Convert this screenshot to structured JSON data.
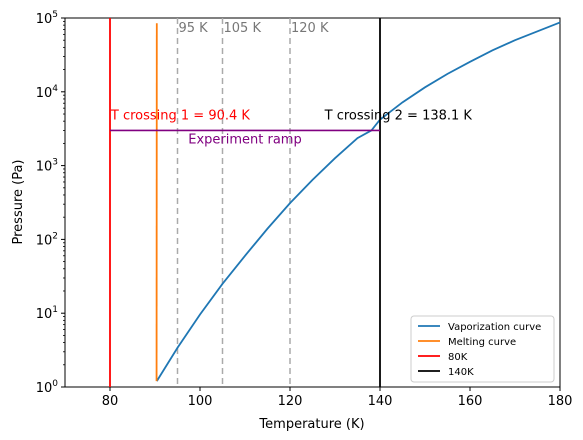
{
  "chart_data": {
    "type": "line",
    "xlabel": "Temperature (K)",
    "ylabel": "Pressure (Pa)",
    "xlim": [
      70,
      180
    ],
    "ylim": [
      1,
      100000
    ],
    "yscale": "log",
    "grid": false,
    "legend_position": "bottom-right",
    "xticks": [
      {
        "value": 80,
        "label": "80"
      },
      {
        "value": 100,
        "label": "100"
      },
      {
        "value": 120,
        "label": "120"
      },
      {
        "value": 140,
        "label": "140"
      },
      {
        "value": 160,
        "label": "160"
      },
      {
        "value": 180,
        "label": "180"
      }
    ],
    "yticks": [
      {
        "value": 1,
        "base": "10",
        "exp": "0"
      },
      {
        "value": 10,
        "base": "10",
        "exp": "1"
      },
      {
        "value": 100,
        "base": "10",
        "exp": "2"
      },
      {
        "value": 1000,
        "base": "10",
        "exp": "3"
      },
      {
        "value": 10000,
        "base": "10",
        "exp": "4"
      },
      {
        "value": 100000,
        "base": "10",
        "exp": "5"
      }
    ],
    "series": [
      {
        "name": "Vaporization curve",
        "color": "#1f77b4",
        "x": [
          90.4,
          95,
          100,
          105,
          110,
          115,
          120,
          125,
          130,
          135,
          138.1,
          140,
          145,
          150,
          155,
          160,
          165,
          170,
          175,
          180
        ],
        "y": [
          1.2,
          3.4,
          9.6,
          25,
          60,
          140,
          310,
          640,
          1260,
          2360,
          3000,
          4200,
          7200,
          11500,
          17500,
          25500,
          36500,
          50000,
          66000,
          87000
        ]
      },
      {
        "name": "Melting curve",
        "color": "#ff7f0e",
        "x": [
          90.35,
          90.4
        ],
        "y": [
          1.2,
          85000
        ]
      },
      {
        "name": "80K",
        "color": "#ff0000",
        "x": [
          80,
          80
        ],
        "y": [
          1,
          100000
        ]
      },
      {
        "name": "140K",
        "color": "#000000",
        "x": [
          140,
          140
        ],
        "y": [
          1,
          100000
        ]
      }
    ],
    "reference_lines": [
      {
        "x": 95,
        "label": "95 K",
        "color": "#aaaaaa"
      },
      {
        "x": 105,
        "label": "105 K",
        "color": "#aaaaaa"
      },
      {
        "x": 120,
        "label": "120 K",
        "color": "#aaaaaa"
      }
    ],
    "ramp": {
      "label": "Experiment ramp",
      "color": "#800080",
      "x": [
        80,
        140
      ],
      "y": 3000
    },
    "annotations": [
      {
        "text": "T crossing 1 = 90.4 K",
        "x": 80.2,
        "y": 4200,
        "color": "#ff0000"
      },
      {
        "text": "T crossing 2 = 138.1 K",
        "x": 127.7,
        "y": 4200,
        "color": "#000000"
      }
    ]
  }
}
